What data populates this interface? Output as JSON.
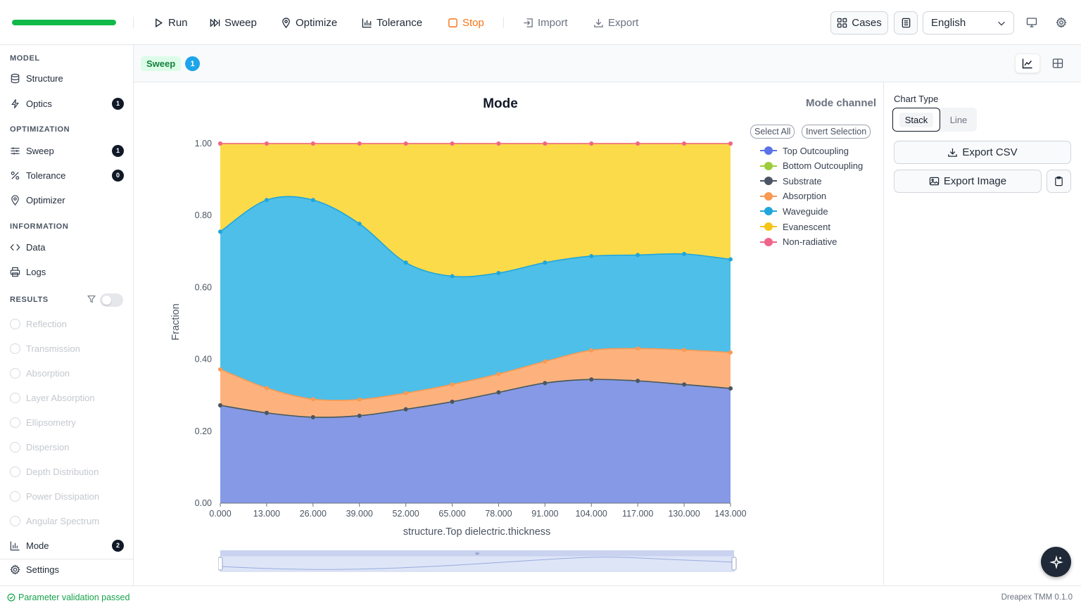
{
  "toolbar": {
    "progress": 1.0,
    "run": "Run",
    "sweep": "Sweep",
    "optimize": "Optimize",
    "tolerance": "Tolerance",
    "stop": "Stop",
    "import": "Import",
    "export": "Export",
    "cases": "Cases",
    "language": "English"
  },
  "sidebar": {
    "model_section": "MODEL",
    "structure": "Structure",
    "optics": "Optics",
    "optics_badge": "1",
    "optimization_section": "OPTIMIZATION",
    "sweep": "Sweep",
    "sweep_badge": "1",
    "tolerance": "Tolerance",
    "tolerance_badge": "0",
    "optimizer": "Optimizer",
    "information_section": "INFORMATION",
    "data": "Data",
    "logs": "Logs",
    "results_section": "RESULTS",
    "results": [
      {
        "label": "Reflection",
        "icon": "reflection-icon"
      },
      {
        "label": "Transmission",
        "icon": "transmission-icon"
      },
      {
        "label": "Absorption",
        "icon": "absorption-icon"
      },
      {
        "label": "Layer Absorption",
        "icon": "layer-absorption-icon"
      },
      {
        "label": "Ellipsometry",
        "icon": "ellipsometry-icon"
      },
      {
        "label": "Dispersion",
        "icon": "dispersion-icon"
      },
      {
        "label": "Depth Distribution",
        "icon": "depth-distribution-icon"
      },
      {
        "label": "Power Dissipation",
        "icon": "power-dissipation-icon"
      },
      {
        "label": "Angular Spectrum",
        "icon": "angular-spectrum-icon"
      }
    ],
    "mode": "Mode",
    "mode_badge": "2",
    "settings": "Settings"
  },
  "subbar": {
    "tag": "Sweep",
    "count": "1"
  },
  "legend": {
    "title": "Mode channel",
    "select_all": "Select All",
    "invert": "Invert Selection"
  },
  "right_panel": {
    "chart_type_label": "Chart Type",
    "stack": "Stack",
    "line": "Line",
    "export_csv": "Export CSV",
    "export_image": "Export Image"
  },
  "status": {
    "message": "Parameter validation passed",
    "version": "Dreapex TMM 0.1.0"
  },
  "chart_data": {
    "type": "area",
    "stacked": true,
    "title": "Mode",
    "xlabel": "structure.Top dielectric.thickness",
    "ylabel": "Fraction",
    "ylim": [
      0,
      1
    ],
    "yticks": [
      "0.00",
      "0.20",
      "0.40",
      "0.60",
      "0.80",
      "1.00"
    ],
    "x": [
      0,
      13,
      26,
      39,
      52,
      65,
      78,
      91,
      104,
      117,
      130,
      143
    ],
    "x_tick_labels": [
      "0.000",
      "13.000",
      "26.000",
      "39.000",
      "52.000",
      "65.000",
      "78.000",
      "91.000",
      "104.000",
      "117.000",
      "130.000",
      "143.000"
    ],
    "x_max": 143,
    "series": [
      {
        "name": "Top Outcoupling",
        "color": "#5b72e8",
        "fill": "#8599e6",
        "values": [
          0.272,
          0.251,
          0.239,
          0.243,
          0.261,
          0.282,
          0.308,
          0.334,
          0.344,
          0.34,
          0.33,
          0.319
        ]
      },
      {
        "name": "Bottom Outcoupling",
        "color": "#9ccc3c",
        "fill": "#b7dc77",
        "values": [
          0.0,
          0.0,
          0.0,
          0.0,
          0.0,
          0.0,
          0.0,
          0.0,
          0.0,
          0.0,
          0.0,
          0.0
        ]
      },
      {
        "name": "Substrate",
        "color": "#4b5563",
        "fill": "#6b7280",
        "values": [
          0.0,
          0.0,
          0.0,
          0.0,
          0.0,
          0.0,
          0.0,
          0.0,
          0.0,
          0.0,
          0.0,
          0.0
        ]
      },
      {
        "name": "Absorption",
        "color": "#f89a54",
        "fill": "#fdb27d",
        "values": [
          0.1,
          0.069,
          0.05,
          0.045,
          0.045,
          0.048,
          0.051,
          0.06,
          0.081,
          0.09,
          0.096,
          0.1
        ]
      },
      {
        "name": "Waveguide",
        "color": "#1fa6dc",
        "fill": "#4ebfe8",
        "values": [
          0.383,
          0.523,
          0.554,
          0.489,
          0.363,
          0.301,
          0.281,
          0.275,
          0.262,
          0.26,
          0.267,
          0.259
        ]
      },
      {
        "name": "Evanescent",
        "color": "#f5c518",
        "fill": "#fcdb4a",
        "values": [
          0.245,
          0.157,
          0.157,
          0.223,
          0.331,
          0.369,
          0.36,
          0.331,
          0.313,
          0.31,
          0.307,
          0.322
        ]
      },
      {
        "name": "Non-radiative",
        "color": "#f0648a",
        "fill": "#f58ea9",
        "values": [
          0.0,
          0.0,
          0.0,
          0.0,
          0.0,
          0.0,
          0.0,
          0.0,
          0.0,
          0.0,
          0.0,
          0.0
        ]
      }
    ],
    "legend_position": "right",
    "grid": false
  }
}
